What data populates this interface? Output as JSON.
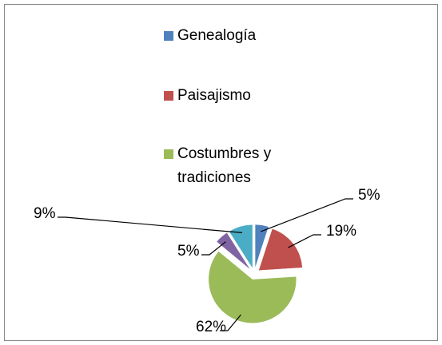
{
  "chart_data": {
    "type": "pie",
    "categories": [
      "Genealogía",
      "Paisajismo",
      "Costumbres y tradiciones",
      null,
      null
    ],
    "values": [
      5,
      19,
      62,
      5,
      9
    ],
    "value_labels": [
      "5%",
      "19%",
      "62%",
      "5%",
      "9%"
    ],
    "colors": [
      "#4f81bd",
      "#c0504d",
      "#9bbb59",
      "#8064a2",
      "#4bacc6"
    ],
    "legend": "top"
  }
}
